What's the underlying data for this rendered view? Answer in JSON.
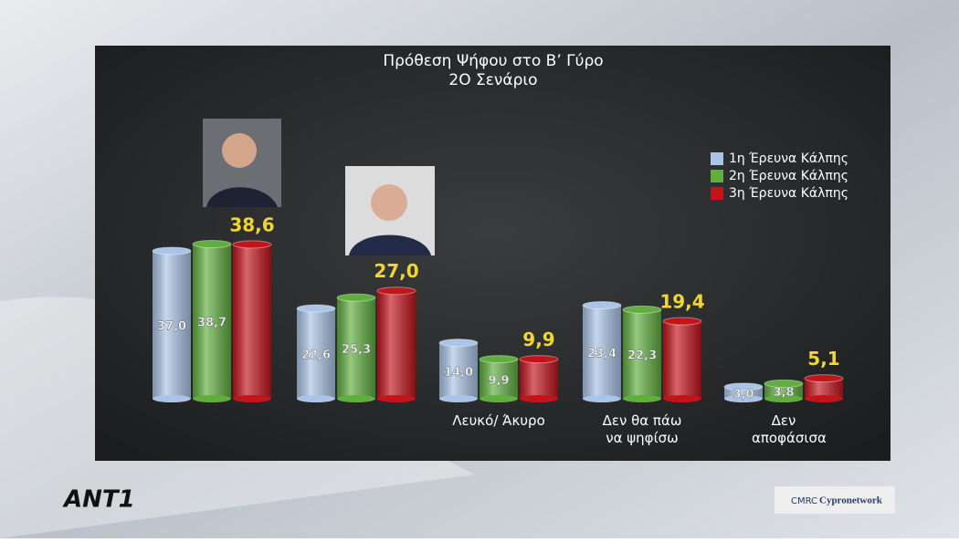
{
  "chart_data": {
    "type": "bar",
    "title": "Πρόθεση Ψήφου στο Β’ Γύρο",
    "subtitle": "2Ο Σενάριο",
    "categories": [
      null,
      null,
      "Λευκό/ Άκυρο",
      "Δεν θα πάω να ψηφίσω",
      "Δεν αποφάσισα"
    ],
    "series": [
      {
        "name": "1η Έρευνα Κάλπης",
        "color": "#a9c4e6",
        "values": [
          37.0,
          22.6,
          14.0,
          23.4,
          3.0
        ],
        "value_labels": [
          "37,0",
          "22,6",
          "14,0",
          "23,4",
          "3,0"
        ]
      },
      {
        "name": "2η Έρευνα Κάλπης",
        "color": "#5fae3e",
        "values": [
          38.7,
          25.3,
          9.9,
          22.3,
          3.8
        ],
        "value_labels": [
          "38,7",
          "25,3",
          "9,9",
          "22,3",
          "3,8"
        ]
      },
      {
        "name": "3η Έρευνα Κάλπης",
        "color": "#c3141c",
        "values": [
          38.6,
          27.0,
          9.9,
          19.4,
          5.1
        ],
        "value_labels": [
          "38,6",
          "27,0",
          "9,9",
          "19,4",
          "5,1"
        ]
      }
    ]
  },
  "logos": [
    "ANT1",
    "CMRC",
    "Cypronetwork"
  ]
}
